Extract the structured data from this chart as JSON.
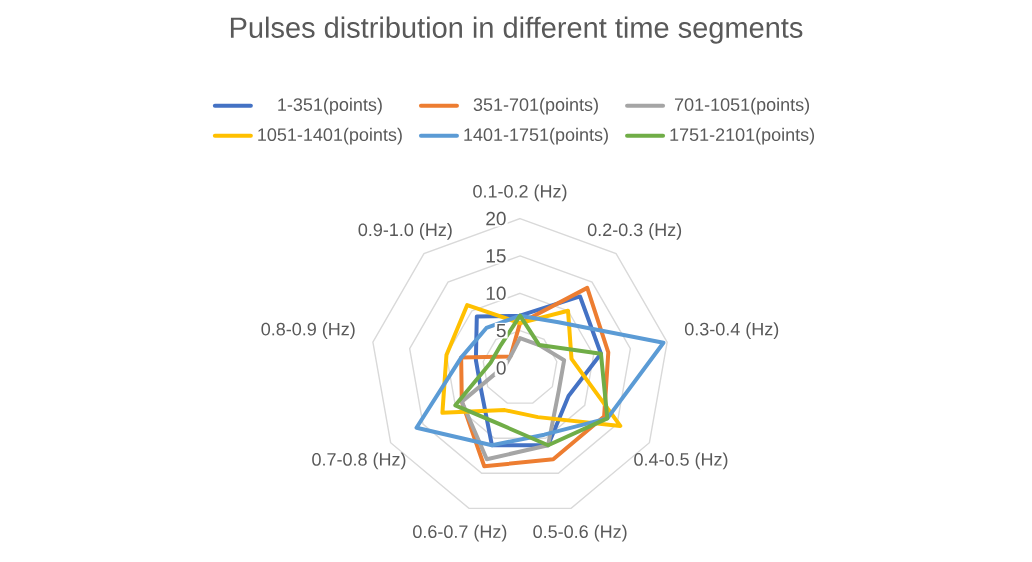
{
  "chart_data": {
    "type": "radar",
    "title": "Pulses distribution in different time segments",
    "categories": [
      "0.1-0.2 (Hz)",
      "0.2-0.3 (Hz)",
      "0.3-0.4 (Hz)",
      "0.4-0.5 (Hz)",
      "0.5-0.6 (Hz)",
      "0.6-0.7 (Hz)",
      "0.7-0.8 (Hz)",
      "0.8-0.9 (Hz)",
      "0.9-1.0 (Hz)"
    ],
    "series": [
      {
        "name": "1-351(points)",
        "color": "#4472c4",
        "values": [
          7,
          12.5,
          11,
          7.5,
          11,
          11,
          6,
          6,
          9
        ]
      },
      {
        "name": "351-701(points)",
        "color": "#ed7d31",
        "values": [
          6,
          14,
          12,
          13,
          13,
          14,
          9,
          8,
          2
        ]
      },
      {
        "name": "701-1051(points)",
        "color": "#a5a5a5",
        "values": [
          4,
          4,
          6,
          6,
          11,
          13,
          9,
          2,
          2
        ]
      },
      {
        "name": "1051-1401(points)",
        "color": "#ffc000",
        "values": [
          6,
          10,
          7,
          15.5,
          7,
          6,
          12,
          10,
          11
        ]
      },
      {
        "name": "1401-1751(points)",
        "color": "#5b9bd5",
        "values": [
          7,
          8,
          19.5,
          13.5,
          9.5,
          11,
          16,
          8,
          7
        ]
      },
      {
        "name": "1751-2101(points)",
        "color": "#70ad47",
        "values": [
          7,
          4,
          11,
          13.5,
          11,
          8,
          10,
          4,
          4
        ]
      }
    ],
    "ylim": [
      0,
      20
    ],
    "yticks": [
      0,
      5,
      10,
      15,
      20
    ],
    "grid": true,
    "legend": "top",
    "marker": "none"
  }
}
